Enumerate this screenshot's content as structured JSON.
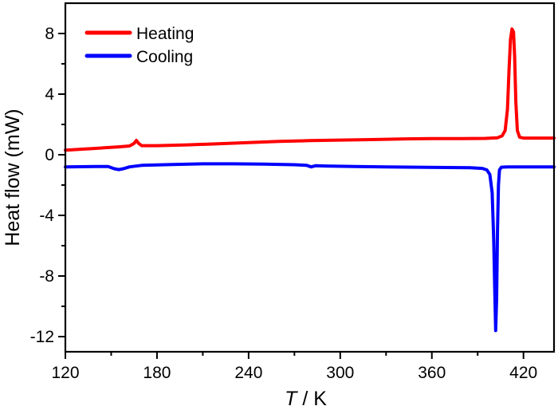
{
  "chart_data": {
    "type": "line",
    "title": "",
    "xlabel_italic": "T",
    "xlabel_rest": " / K",
    "ylabel": "Heat flow (mW)",
    "xlim": [
      120,
      440
    ],
    "ylim": [
      -13,
      10
    ],
    "xticks": [
      120,
      180,
      240,
      300,
      360,
      420
    ],
    "xminor": [
      150,
      210,
      270,
      330,
      390
    ],
    "yticks": [
      8,
      4,
      0,
      -4,
      -8,
      -12
    ],
    "yminor": [
      6,
      2,
      -2,
      -6,
      -10
    ],
    "xtick_labels": [
      "120",
      "180",
      "240",
      "300",
      "360",
      "420"
    ],
    "ytick_labels": [
      "8",
      "4",
      "0",
      "-4",
      "-8",
      "-12"
    ],
    "grid": false,
    "legend_position": "top-left",
    "series": [
      {
        "name": "Heating",
        "color": "#ff0000",
        "points": [
          [
            120,
            0.3
          ],
          [
            140,
            0.42
          ],
          [
            155,
            0.52
          ],
          [
            162,
            0.58
          ],
          [
            165,
            0.75
          ],
          [
            166.5,
            0.95
          ],
          [
            168,
            0.75
          ],
          [
            170,
            0.6
          ],
          [
            180,
            0.6
          ],
          [
            200,
            0.65
          ],
          [
            220,
            0.72
          ],
          [
            240,
            0.8
          ],
          [
            260,
            0.88
          ],
          [
            280,
            0.93
          ],
          [
            300,
            0.97
          ],
          [
            320,
            1.0
          ],
          [
            340,
            1.04
          ],
          [
            360,
            1.07
          ],
          [
            380,
            1.07
          ],
          [
            395,
            1.08
          ],
          [
            403,
            1.12
          ],
          [
            406,
            1.25
          ],
          [
            408,
            1.6
          ],
          [
            409.5,
            3.0
          ],
          [
            410.5,
            5.5
          ],
          [
            411.5,
            7.6
          ],
          [
            412.5,
            8.3
          ],
          [
            413.5,
            8.1
          ],
          [
            414.2,
            6.5
          ],
          [
            415,
            3.5
          ],
          [
            416,
            1.6
          ],
          [
            417.5,
            1.15
          ],
          [
            420,
            1.1
          ],
          [
            440,
            1.1
          ]
        ]
      },
      {
        "name": "Cooling",
        "color": "#0000ff",
        "points": [
          [
            120,
            -0.8
          ],
          [
            140,
            -0.78
          ],
          [
            148,
            -0.78
          ],
          [
            152,
            -0.92
          ],
          [
            155,
            -0.98
          ],
          [
            158,
            -0.92
          ],
          [
            162,
            -0.8
          ],
          [
            170,
            -0.7
          ],
          [
            190,
            -0.65
          ],
          [
            210,
            -0.6
          ],
          [
            230,
            -0.6
          ],
          [
            250,
            -0.62
          ],
          [
            270,
            -0.66
          ],
          [
            278,
            -0.7
          ],
          [
            281,
            -0.8
          ],
          [
            284,
            -0.72
          ],
          [
            290,
            -0.74
          ],
          [
            310,
            -0.78
          ],
          [
            330,
            -0.8
          ],
          [
            350,
            -0.82
          ],
          [
            370,
            -0.84
          ],
          [
            385,
            -0.86
          ],
          [
            393,
            -0.9
          ],
          [
            396,
            -1.0
          ],
          [
            398,
            -1.3
          ],
          [
            399.5,
            -2.5
          ],
          [
            400.5,
            -5.5
          ],
          [
            401.2,
            -9.0
          ],
          [
            401.8,
            -11.6
          ],
          [
            402.4,
            -9.5
          ],
          [
            403,
            -5.0
          ],
          [
            403.6,
            -2.0
          ],
          [
            404.3,
            -1.0
          ],
          [
            405.5,
            -0.82
          ],
          [
            410,
            -0.8
          ],
          [
            440,
            -0.8
          ]
        ]
      }
    ]
  }
}
